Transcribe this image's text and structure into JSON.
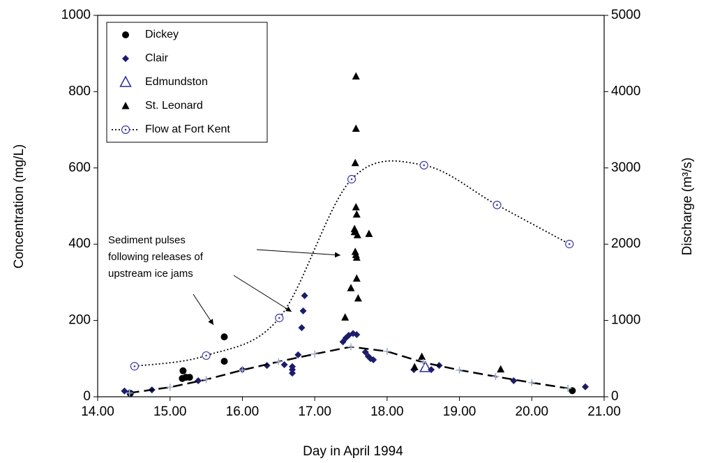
{
  "chart_data": {
    "type": "scatter",
    "xlabel": "Day in April 1994",
    "ylabel": "Concentration  (mg/L)",
    "y2label": "Discharge  (m³/s)",
    "xlim": [
      14,
      21
    ],
    "xticks": [
      {
        "value": 14,
        "label": "14.00"
      },
      {
        "value": 15,
        "label": "15.00"
      },
      {
        "value": 16,
        "label": "16.00"
      },
      {
        "value": 17,
        "label": "17.00"
      },
      {
        "value": 18,
        "label": "18.00"
      },
      {
        "value": 19,
        "label": "19.00"
      },
      {
        "value": 20,
        "label": "20.00"
      },
      {
        "value": 21,
        "label": "21.00"
      }
    ],
    "ylim": [
      0,
      1000
    ],
    "yticks": [
      0,
      200,
      400,
      600,
      800,
      1000
    ],
    "y2lim": [
      0,
      5000
    ],
    "y2ticks": [
      0,
      1000,
      2000,
      3000,
      4000,
      5000
    ],
    "legend": "top-left",
    "annotation": [
      "Sediment pulses",
      "following releases of",
      "upstream ice jams"
    ],
    "series": [
      {
        "name": "Dickey",
        "marker": "circle",
        "color": "#000000",
        "x": [
          14.45,
          15.18,
          15.17,
          15.22,
          15.27,
          15.75,
          15.75,
          20.56
        ],
        "values": [
          9,
          68,
          48,
          51,
          51,
          93,
          157,
          16
        ]
      },
      {
        "name": "Clair",
        "marker": "diamond",
        "color": "#1c1c6b",
        "x": [
          14.37,
          14.44,
          14.75,
          15.39,
          16.0,
          16.34,
          16.58,
          16.69,
          16.69,
          16.69,
          16.77,
          16.82,
          16.84,
          16.86,
          17.39,
          17.43,
          17.47,
          17.53,
          17.58,
          17.7,
          17.74,
          17.77,
          17.81,
          18.37,
          18.61,
          18.72,
          19.75,
          20.74
        ],
        "values": [
          15,
          11,
          18,
          42,
          71,
          82,
          84,
          79,
          71,
          62,
          110,
          181,
          225,
          265,
          144,
          154,
          161,
          166,
          163,
          117,
          106,
          100,
          97,
          71,
          71,
          82,
          42,
          26
        ]
      },
      {
        "name": "Edmundston",
        "marker": "triangle-open",
        "color": "#2a2aa0",
        "x": [
          18.53
        ],
        "values": [
          77
        ]
      },
      {
        "name": "St. Leonard",
        "marker": "triangle",
        "color": "#000000",
        "x": [
          17.42,
          17.5,
          17.57,
          17.57,
          17.56,
          17.57,
          17.58,
          17.55,
          17.55,
          17.59,
          17.56,
          17.57,
          17.58,
          17.58,
          17.6,
          17.75,
          18.38,
          18.48,
          19.57
        ],
        "values": [
          208,
          285,
          840,
          703,
          613,
          497,
          478,
          440,
          432,
          424,
          380,
          372,
          365,
          310,
          258,
          427,
          78,
          105,
          72
        ]
      },
      {
        "name": "Flow at Fort Kent",
        "marker": "circle-dot",
        "color": "#3a3aa8",
        "line": "dotted",
        "smooth": true,
        "axis": "y2",
        "x": [
          14.51,
          15.5,
          16.51,
          17.51,
          18.51,
          19.52,
          20.52
        ],
        "values": [
          400,
          540,
          1033,
          2852,
          3035,
          2514,
          2002
        ]
      },
      {
        "marker": "plus",
        "color": "#a0aac8",
        "line": "dashed",
        "x": [
          14.44,
          15.0,
          15.5,
          16.0,
          16.5,
          17.0,
          17.5,
          18.0,
          18.5,
          19.0,
          19.5,
          20.0,
          20.5
        ],
        "values": [
          10,
          25,
          45,
          70,
          92,
          112,
          131,
          119,
          90,
          70,
          53,
          37,
          22
        ]
      }
    ]
  }
}
